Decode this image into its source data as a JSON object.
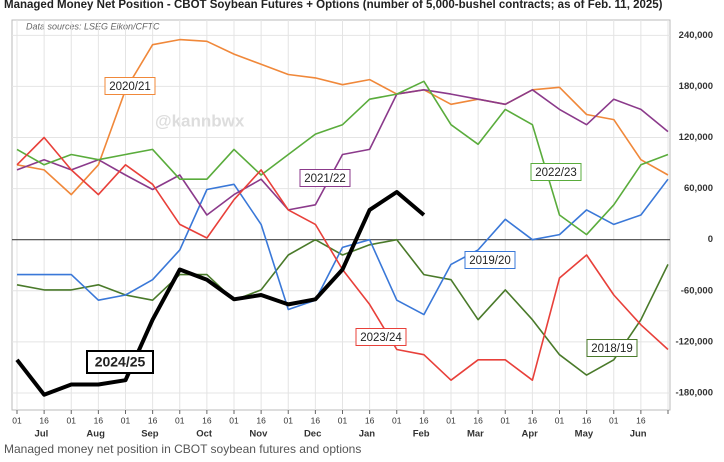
{
  "chart_data": {
    "type": "line",
    "title": "Managed Money Net Position - CBOT Soybean Futures + Options (number of 5,000-bushel contracts; as of Feb. 11, 2025)",
    "source": "Data sources: LSEG Eikon/CFTC",
    "watermark": "@kannbwx",
    "caption": "Managed money net position in CBOT soybean futures and options",
    "categories": [
      "01",
      "16",
      "01",
      "16",
      "01",
      "16",
      "01",
      "16",
      "01",
      "16",
      "01",
      "16",
      "01",
      "16",
      "01",
      "16",
      "01",
      "16",
      "01",
      "16",
      "01",
      "16",
      "01",
      "16",
      null
    ],
    "months": [
      "Jul",
      "Aug",
      "Sep",
      "Oct",
      "Nov",
      "Dec",
      "Jan",
      "Feb",
      "Mar",
      "Apr",
      "May",
      "Jun"
    ],
    "ylim": [
      -200000,
      258000
    ],
    "yticks": [
      {
        "value": 240000,
        "label": "240,000"
      },
      {
        "value": 180000,
        "label": "180,000"
      },
      {
        "value": 120000,
        "label": "120,000"
      },
      {
        "value": 60000,
        "label": "60,000"
      },
      0,
      {
        "value": -60000,
        "label": "-60,000"
      },
      {
        "value": -120000,
        "label": "-120,000"
      },
      {
        "value": -180000,
        "label": "-180,000"
      }
    ],
    "grid": true,
    "series": [
      {
        "name": "2018/19",
        "color": "#4a7a2a",
        "values": [
          -53000,
          -59000,
          -59000,
          -53000,
          -65000,
          -71000,
          -41000,
          -41000,
          -71000,
          -59000,
          -18000,
          0,
          -18000,
          -6000,
          0,
          -41000,
          -47000,
          -94000,
          -59000,
          -94000,
          -135000,
          -159000,
          -141000,
          -94000,
          -29000
        ]
      },
      {
        "name": "2019/20",
        "color": "#3a78d8",
        "values": [
          -41000,
          -41000,
          -41000,
          -71000,
          -65000,
          -47000,
          -12000,
          59000,
          65000,
          18000,
          -82000,
          -71000,
          -9000,
          0,
          -71000,
          -88000,
          -29000,
          -12000,
          24000,
          0,
          6000,
          35000,
          18000,
          29000,
          71000
        ]
      },
      {
        "name": "2020/21",
        "color": "#f0883a",
        "values": [
          88000,
          82000,
          53000,
          88000,
          176000,
          229000,
          235000,
          233000,
          218000,
          206000,
          194000,
          190000,
          182000,
          188000,
          171000,
          176000,
          159000,
          165000,
          159000,
          176000,
          179000,
          147000,
          141000,
          94000,
          76000
        ]
      },
      {
        "name": "2021/22",
        "color": "#8b3a8b",
        "values": [
          82000,
          94000,
          82000,
          94000,
          76000,
          59000,
          76000,
          29000,
          53000,
          71000,
          35000,
          41000,
          100000,
          106000,
          171000,
          176000,
          171000,
          165000,
          159000,
          176000,
          153000,
          135000,
          165000,
          153000,
          127000
        ]
      },
      {
        "name": "2022/23",
        "color": "#5aac3c",
        "values": [
          106000,
          88000,
          100000,
          94000,
          100000,
          106000,
          71000,
          71000,
          106000,
          76000,
          100000,
          124000,
          135000,
          165000,
          171000,
          186000,
          135000,
          112000,
          153000,
          135000,
          29000,
          6000,
          41000,
          88000,
          100000
        ]
      },
      {
        "name": "2023/24",
        "color": "#e8403a",
        "values": [
          88000,
          120000,
          82000,
          53000,
          88000,
          65000,
          18000,
          2000,
          47000,
          82000,
          35000,
          18000,
          -35000,
          -76000,
          -129000,
          -135000,
          -165000,
          -141000,
          -141000,
          -165000,
          -45000,
          -18000,
          -65000,
          -100000,
          -129000
        ]
      },
      {
        "name": "2024/25",
        "color": "#000000",
        "values": [
          -141000,
          -182000,
          -170000,
          -170000,
          -165000,
          -94000,
          -35000,
          -47000,
          -70000,
          -65000,
          -76000,
          -70000,
          -35000,
          35000,
          56000,
          29000,
          null,
          null,
          null,
          null,
          null,
          null,
          null,
          null,
          null
        ]
      }
    ]
  }
}
